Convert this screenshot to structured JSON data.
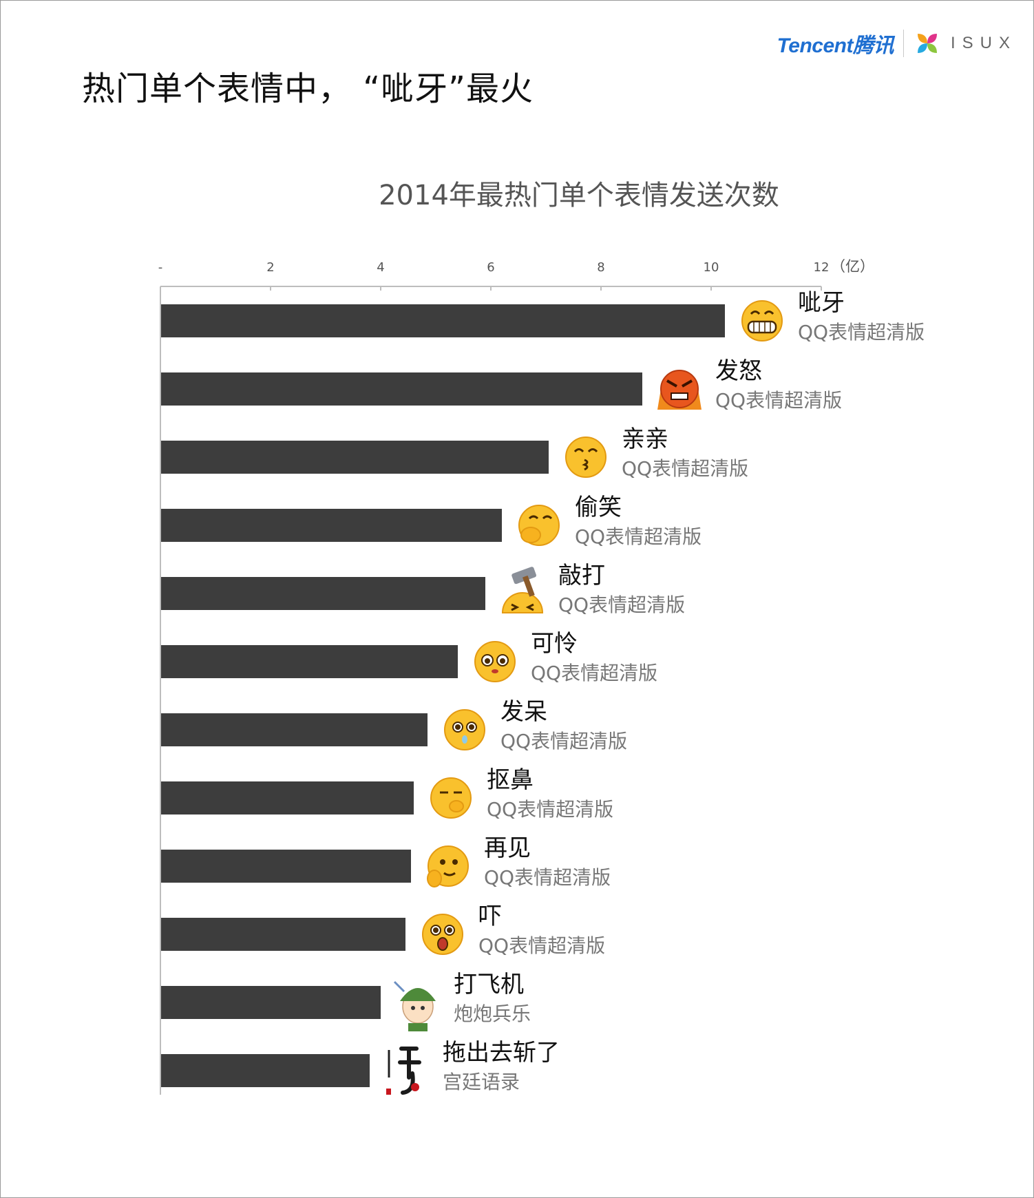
{
  "headline": "热门单个表情中，  “呲牙”最火",
  "logo": {
    "brand": "Tencent腾讯",
    "sub": "ISUX"
  },
  "colors": {
    "bar": "#3d3d3d",
    "axis": "#bdbdbd",
    "tick_text": "#555555",
    "sub_label": "#777777"
  },
  "chart_data": {
    "type": "bar",
    "orientation": "horizontal",
    "title": "2014年最热门单个表情发送次数",
    "x_unit_label": "（亿）",
    "xlim": [
      0,
      12
    ],
    "x_ticks": [
      {
        "value": 0,
        "label": "-"
      },
      {
        "value": 2,
        "label": "2"
      },
      {
        "value": 4,
        "label": "4"
      },
      {
        "value": 6,
        "label": "6"
      },
      {
        "value": 8,
        "label": "8"
      },
      {
        "value": 10,
        "label": "10"
      },
      {
        "value": 12,
        "label": "12"
      }
    ],
    "grid": false,
    "axis_position": "top",
    "categories": [
      {
        "name": "呲牙",
        "source": "QQ表情超清版",
        "value": 10.25,
        "icon": "grin-emoji-icon"
      },
      {
        "name": "发怒",
        "source": "QQ表情超清版",
        "value": 8.75,
        "icon": "angry-emoji-icon"
      },
      {
        "name": "亲亲",
        "source": "QQ表情超清版",
        "value": 7.05,
        "icon": "kiss-emoji-icon"
      },
      {
        "name": "偷笑",
        "source": "QQ表情超清版",
        "value": 6.2,
        "icon": "snicker-emoji-icon"
      },
      {
        "name": "敲打",
        "source": "QQ表情超清版",
        "value": 5.9,
        "icon": "hammer-emoji-icon"
      },
      {
        "name": "可怜",
        "source": "QQ表情超清版",
        "value": 5.4,
        "icon": "pitiful-emoji-icon"
      },
      {
        "name": "发呆",
        "source": "QQ表情超清版",
        "value": 4.85,
        "icon": "daze-emoji-icon"
      },
      {
        "name": "抠鼻",
        "source": "QQ表情超清版",
        "value": 4.6,
        "icon": "nose-pick-emoji-icon"
      },
      {
        "name": "再见",
        "source": "QQ表情超清版",
        "value": 4.55,
        "icon": "bye-emoji-icon"
      },
      {
        "name": "吓",
        "source": "QQ表情超清版",
        "value": 4.45,
        "icon": "scared-emoji-icon"
      },
      {
        "name": "打飞机",
        "source": "炮炮兵乐",
        "value": 4.0,
        "icon": "soldier-sticker-icon"
      },
      {
        "name": "拖出去斩了",
        "source": "宫廷语录",
        "value": 3.8,
        "icon": "calligraphy-sticker-icon"
      }
    ]
  }
}
